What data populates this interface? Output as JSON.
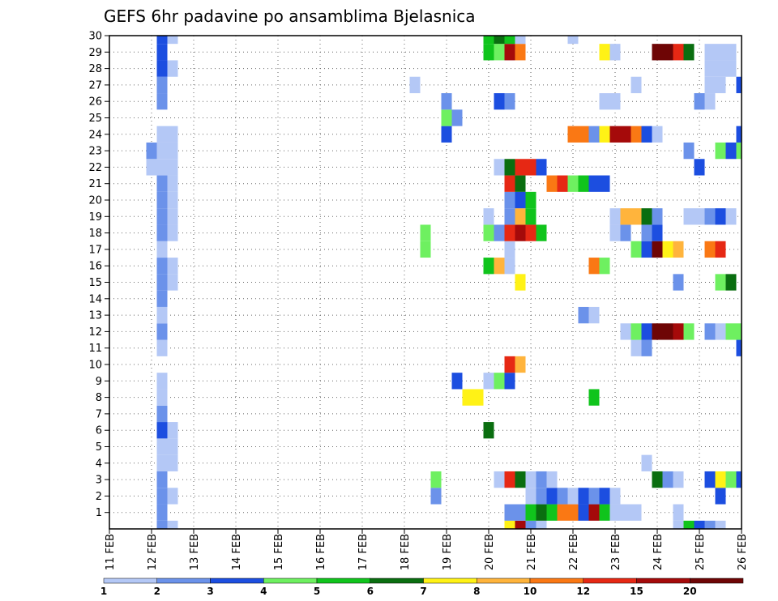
{
  "chart_data": {
    "type": "heatmap",
    "title": "GEFS 6hr padavine po ansamblima Bjelasnica",
    "xlabel": "",
    "ylabel": "",
    "x_ticks": [
      "11 FEB",
      "12 FEB",
      "13 FEB",
      "14 FEB",
      "15 FEB",
      "16 FEB",
      "17 FEB",
      "18 FEB",
      "19 FEB",
      "20 FEB",
      "21 FEB",
      "22 FEB",
      "23 FEB",
      "24 FEB",
      "25 FEB",
      "26 FEB"
    ],
    "y_ticks": [
      1,
      2,
      3,
      4,
      5,
      6,
      7,
      8,
      9,
      10,
      11,
      12,
      13,
      14,
      15,
      16,
      17,
      18,
      19,
      20,
      21,
      22,
      23,
      24,
      25,
      26,
      27,
      28,
      29,
      30
    ],
    "xlim": [
      0,
      60
    ],
    "ylim": [
      0,
      30
    ],
    "x_unit": "6h steps from 11 FEB 00Z",
    "grid": true,
    "legend": {
      "placement": "bottom",
      "labels": [
        "1",
        "2",
        "3",
        "4",
        "5",
        "6",
        "7",
        "8",
        "10",
        "12",
        "15",
        "20"
      ],
      "colors": [
        "#b4c8f6",
        "#6b92ea",
        "#1c4ee0",
        "#6ef060",
        "#10c41c",
        "#0a6e10",
        "#fff216",
        "#ffb43c",
        "#fa7814",
        "#e62814",
        "#a50a0a",
        "#6e0505"
      ]
    },
    "cells": [
      [
        5,
        0,
        2
      ],
      [
        5,
        1,
        2
      ],
      [
        5,
        2,
        2
      ],
      [
        5,
        3,
        2
      ],
      [
        5,
        4,
        1
      ],
      [
        5,
        5,
        1
      ],
      [
        5,
        6,
        3
      ],
      [
        5,
        7,
        2
      ],
      [
        5,
        8,
        1
      ],
      [
        5,
        9,
        1
      ],
      [
        5,
        11,
        1
      ],
      [
        5,
        12,
        2
      ],
      [
        5,
        13,
        1
      ],
      [
        5,
        14,
        2
      ],
      [
        5,
        15,
        2
      ],
      [
        5,
        16,
        2
      ],
      [
        5,
        17,
        1
      ],
      [
        5,
        18,
        2
      ],
      [
        5,
        19,
        2
      ],
      [
        5,
        20,
        2
      ],
      [
        5,
        21,
        2
      ],
      [
        5,
        22,
        1
      ],
      [
        5,
        23,
        1
      ],
      [
        5,
        24,
        1
      ],
      [
        5,
        26,
        2
      ],
      [
        5,
        27,
        2
      ],
      [
        5,
        28,
        3
      ],
      [
        5,
        29,
        3
      ],
      [
        5,
        30,
        3
      ],
      [
        6,
        0,
        1
      ],
      [
        6,
        2,
        1
      ],
      [
        6,
        4,
        1
      ],
      [
        6,
        5,
        1
      ],
      [
        6,
        6,
        1
      ],
      [
        6,
        15,
        1
      ],
      [
        6,
        16,
        1
      ],
      [
        6,
        18,
        1
      ],
      [
        6,
        19,
        1
      ],
      [
        6,
        20,
        1
      ],
      [
        6,
        21,
        1
      ],
      [
        6,
        22,
        1
      ],
      [
        6,
        23,
        1
      ],
      [
        6,
        24,
        1
      ],
      [
        6,
        28,
        1
      ],
      [
        6,
        30,
        1
      ],
      [
        4,
        22,
        1
      ],
      [
        4,
        23,
        2
      ],
      [
        29,
        27,
        1
      ],
      [
        30,
        17,
        4
      ],
      [
        30,
        18,
        4
      ],
      [
        31,
        2,
        2
      ],
      [
        31,
        3,
        4
      ],
      [
        32,
        24,
        3
      ],
      [
        32,
        25,
        4
      ],
      [
        32,
        26,
        2
      ],
      [
        33,
        9,
        3
      ],
      [
        33,
        25,
        2
      ],
      [
        34,
        8,
        7
      ],
      [
        35,
        8,
        7
      ],
      [
        36,
        6,
        6
      ],
      [
        36,
        9,
        1
      ],
      [
        36,
        16,
        5
      ],
      [
        36,
        18,
        4
      ],
      [
        36,
        19,
        1
      ],
      [
        36,
        29,
        5
      ],
      [
        36,
        30,
        5
      ],
      [
        37,
        3,
        1
      ],
      [
        37,
        9,
        4
      ],
      [
        37,
        16,
        8
      ],
      [
        37,
        18,
        2
      ],
      [
        37,
        22,
        1
      ],
      [
        37,
        26,
        3
      ],
      [
        37,
        29,
        4
      ],
      [
        37,
        30,
        6
      ],
      [
        38,
        0,
        7
      ],
      [
        38,
        1,
        2
      ],
      [
        38,
        3,
        10
      ],
      [
        38,
        9,
        3
      ],
      [
        38,
        10,
        10
      ],
      [
        38,
        16,
        1
      ],
      [
        38,
        17,
        1
      ],
      [
        38,
        18,
        10
      ],
      [
        38,
        19,
        2
      ],
      [
        38,
        20,
        2
      ],
      [
        38,
        21,
        10
      ],
      [
        38,
        22,
        6
      ],
      [
        38,
        26,
        2
      ],
      [
        38,
        29,
        11
      ],
      [
        38,
        30,
        5
      ],
      [
        39,
        0,
        11
      ],
      [
        39,
        1,
        2
      ],
      [
        39,
        3,
        6
      ],
      [
        39,
        10,
        8
      ],
      [
        39,
        15,
        7
      ],
      [
        39,
        18,
        11
      ],
      [
        39,
        19,
        8
      ],
      [
        39,
        20,
        3
      ],
      [
        39,
        21,
        6
      ],
      [
        39,
        22,
        10
      ],
      [
        39,
        29,
        9
      ],
      [
        39,
        30,
        1
      ],
      [
        40,
        0,
        2
      ],
      [
        40,
        1,
        5
      ],
      [
        40,
        2,
        1
      ],
      [
        40,
        3,
        1
      ],
      [
        40,
        18,
        10
      ],
      [
        40,
        19,
        5
      ],
      [
        40,
        20,
        5
      ],
      [
        40,
        22,
        10
      ],
      [
        41,
        0,
        1
      ],
      [
        41,
        1,
        6
      ],
      [
        41,
        2,
        2
      ],
      [
        41,
        3,
        2
      ],
      [
        41,
        18,
        5
      ],
      [
        41,
        22,
        3
      ],
      [
        42,
        1,
        5
      ],
      [
        42,
        2,
        3
      ],
      [
        42,
        3,
        1
      ],
      [
        42,
        21,
        9
      ],
      [
        43,
        1,
        9
      ],
      [
        43,
        2,
        2
      ],
      [
        43,
        21,
        10
      ],
      [
        44,
        1,
        9
      ],
      [
        44,
        2,
        1
      ],
      [
        44,
        21,
        4
      ],
      [
        44,
        24,
        9
      ],
      [
        44,
        30,
        1
      ],
      [
        45,
        1,
        3
      ],
      [
        45,
        2,
        3
      ],
      [
        45,
        13,
        2
      ],
      [
        45,
        21,
        5
      ],
      [
        45,
        24,
        9
      ],
      [
        46,
        1,
        11
      ],
      [
        46,
        2,
        2
      ],
      [
        46,
        8,
        5
      ],
      [
        46,
        13,
        1
      ],
      [
        46,
        16,
        9
      ],
      [
        46,
        21,
        3
      ],
      [
        46,
        24,
        2
      ],
      [
        47,
        1,
        5
      ],
      [
        47,
        2,
        3
      ],
      [
        47,
        16,
        4
      ],
      [
        47,
        21,
        3
      ],
      [
        47,
        24,
        7
      ],
      [
        47,
        26,
        1
      ],
      [
        47,
        29,
        7
      ],
      [
        48,
        1,
        1
      ],
      [
        48,
        2,
        1
      ],
      [
        48,
        18,
        1
      ],
      [
        48,
        19,
        1
      ],
      [
        48,
        24,
        11
      ],
      [
        48,
        26,
        1
      ],
      [
        48,
        29,
        1
      ],
      [
        49,
        1,
        1
      ],
      [
        49,
        12,
        1
      ],
      [
        49,
        18,
        2
      ],
      [
        49,
        19,
        8
      ],
      [
        49,
        24,
        11
      ],
      [
        50,
        1,
        1
      ],
      [
        50,
        11,
        1
      ],
      [
        50,
        12,
        4
      ],
      [
        50,
        17,
        4
      ],
      [
        50,
        19,
        8
      ],
      [
        50,
        24,
        9
      ],
      [
        50,
        27,
        1
      ],
      [
        51,
        4,
        1
      ],
      [
        51,
        11,
        2
      ],
      [
        51,
        12,
        3
      ],
      [
        51,
        17,
        3
      ],
      [
        51,
        18,
        2
      ],
      [
        51,
        19,
        6
      ],
      [
        51,
        24,
        3
      ],
      [
        52,
        3,
        6
      ],
      [
        52,
        12,
        12
      ],
      [
        52,
        17,
        12
      ],
      [
        52,
        18,
        3
      ],
      [
        52,
        19,
        2
      ],
      [
        52,
        24,
        1
      ],
      [
        52,
        29,
        12
      ],
      [
        53,
        3,
        2
      ],
      [
        53,
        12,
        12
      ],
      [
        53,
        17,
        7
      ],
      [
        53,
        29,
        12
      ],
      [
        54,
        0,
        1
      ],
      [
        54,
        1,
        1
      ],
      [
        54,
        3,
        1
      ],
      [
        54,
        12,
        11
      ],
      [
        54,
        15,
        2
      ],
      [
        54,
        17,
        8
      ],
      [
        54,
        29,
        10
      ],
      [
        55,
        0,
        5
      ],
      [
        55,
        12,
        4
      ],
      [
        55,
        19,
        1
      ],
      [
        55,
        23,
        2
      ],
      [
        55,
        29,
        6
      ],
      [
        56,
        0,
        3
      ],
      [
        56,
        19,
        1
      ],
      [
        56,
        22,
        3
      ],
      [
        56,
        26,
        2
      ],
      [
        57,
        0,
        2
      ],
      [
        57,
        3,
        3
      ],
      [
        57,
        12,
        2
      ],
      [
        57,
        17,
        9
      ],
      [
        57,
        19,
        2
      ],
      [
        57,
        26,
        1
      ],
      [
        57,
        27,
        1
      ],
      [
        57,
        28,
        1
      ],
      [
        57,
        29,
        1
      ],
      [
        58,
        0,
        1
      ],
      [
        58,
        2,
        3
      ],
      [
        58,
        3,
        7
      ],
      [
        58,
        12,
        1
      ],
      [
        58,
        15,
        4
      ],
      [
        58,
        17,
        10
      ],
      [
        58,
        19,
        3
      ],
      [
        58,
        23,
        4
      ],
      [
        58,
        27,
        1
      ],
      [
        58,
        28,
        1
      ],
      [
        58,
        29,
        1
      ],
      [
        59,
        3,
        4
      ],
      [
        59,
        12,
        4
      ],
      [
        59,
        15,
        6
      ],
      [
        59,
        19,
        1
      ],
      [
        59,
        23,
        3
      ],
      [
        59,
        28,
        1
      ],
      [
        59,
        29,
        1
      ],
      [
        60,
        3,
        3
      ],
      [
        60,
        11,
        3
      ],
      [
        60,
        12,
        4
      ],
      [
        60,
        23,
        4
      ],
      [
        60,
        24,
        3
      ],
      [
        60,
        27,
        3
      ]
    ]
  }
}
